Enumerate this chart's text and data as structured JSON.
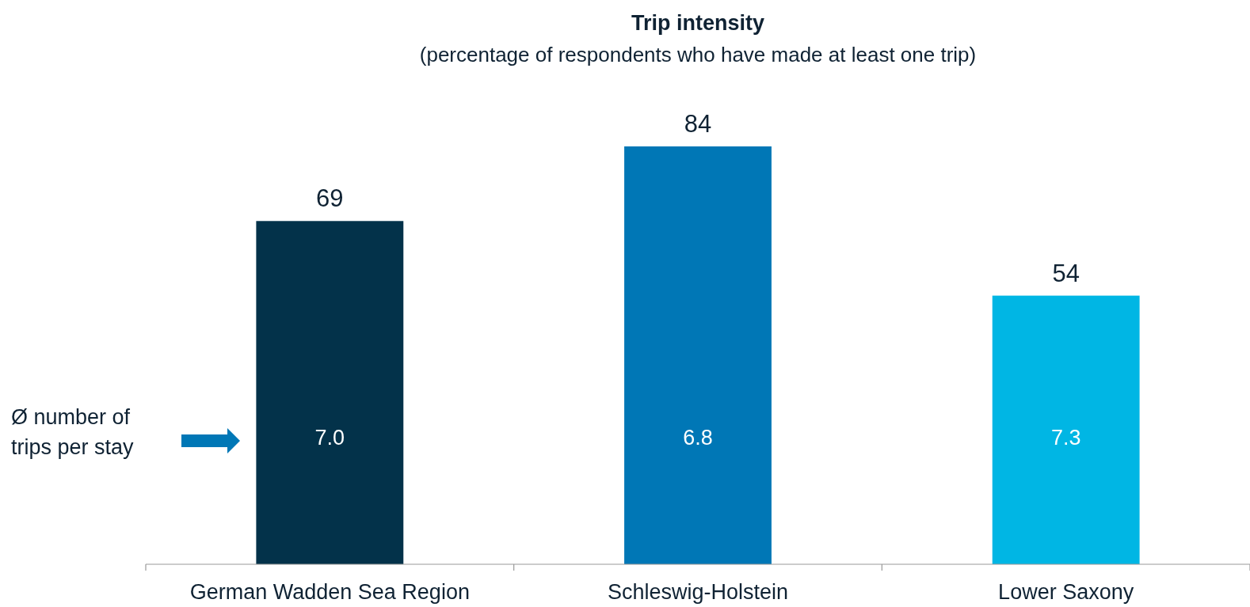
{
  "chart_data": {
    "type": "bar",
    "title": "Trip intensity",
    "subtitle": "(percentage of respondents who have made at least one trip)",
    "categories": [
      "German Wadden Sea Region",
      "Schleswig-Holstein",
      "Lower Saxony"
    ],
    "values": [
      69,
      84,
      54
    ],
    "colors": [
      "#03324a",
      "#0077b6",
      "#00b6e4"
    ],
    "data_labels": true,
    "annotations": [
      "7.0",
      "6.8",
      "7.3",
      "Ø number of trips per stay"
    ]
  }
}
